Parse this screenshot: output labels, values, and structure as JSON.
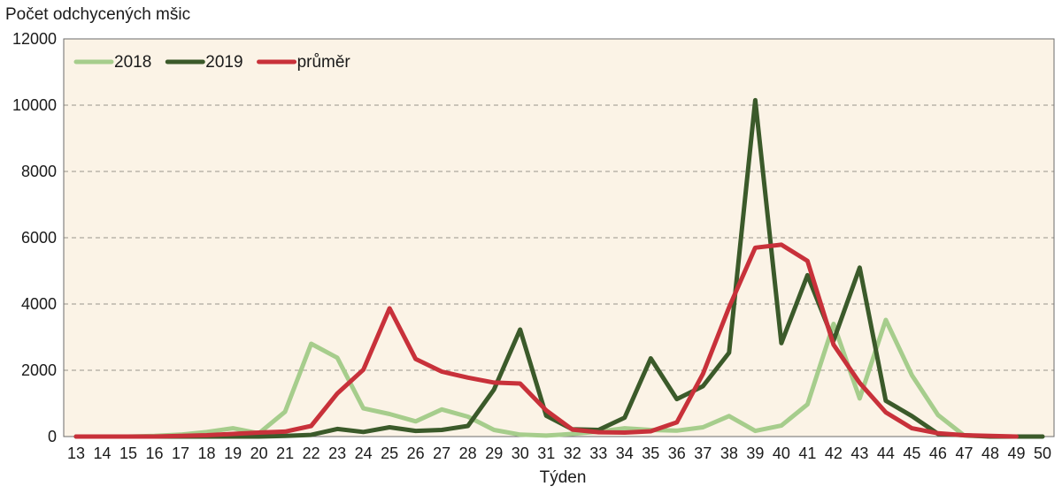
{
  "chart_data": {
    "type": "line",
    "ylabel": "Počet odchycených mšic",
    "xlabel": "Týden",
    "ylim": [
      0,
      12000
    ],
    "yticks": [
      0,
      2000,
      4000,
      6000,
      8000,
      10000,
      12000
    ],
    "grid": "horizontal-dashed",
    "legend_position": "top-left",
    "background": "#fbf3e6",
    "x": [
      13,
      14,
      15,
      16,
      17,
      18,
      19,
      20,
      21,
      22,
      23,
      24,
      25,
      26,
      27,
      28,
      29,
      30,
      31,
      32,
      33,
      34,
      35,
      36,
      37,
      38,
      39,
      40,
      41,
      42,
      43,
      44,
      45,
      46,
      47,
      48,
      49,
      50
    ],
    "series": [
      {
        "name": "2018",
        "color": "#a6cd8c",
        "values": [
          0,
          0,
          0,
          20,
          60,
          140,
          250,
          100,
          750,
          2800,
          2380,
          850,
          680,
          460,
          820,
          600,
          200,
          60,
          30,
          80,
          150,
          250,
          200,
          180,
          280,
          620,
          170,
          330,
          970,
          3400,
          1150,
          3520,
          1850,
          650,
          30,
          0,
          0,
          0
        ]
      },
      {
        "name": "2019",
        "color": "#3b5a2a",
        "values": [
          0,
          0,
          0,
          0,
          0,
          0,
          0,
          0,
          20,
          50,
          230,
          140,
          280,
          170,
          200,
          320,
          1420,
          3230,
          630,
          220,
          200,
          570,
          2360,
          1130,
          1520,
          2530,
          10150,
          2820,
          4870,
          2900,
          5100,
          1080,
          620,
          80,
          40,
          0,
          0,
          0
        ]
      },
      {
        "name": "průměr",
        "color": "#c8313a",
        "values": [
          0,
          0,
          0,
          0,
          20,
          40,
          80,
          120,
          150,
          320,
          1300,
          2020,
          3870,
          2340,
          1960,
          1780,
          1630,
          1600,
          790,
          210,
          130,
          120,
          160,
          430,
          1890,
          3900,
          5700,
          5790,
          5300,
          2770,
          1620,
          730,
          250,
          100,
          40,
          20,
          0,
          null
        ]
      }
    ]
  }
}
